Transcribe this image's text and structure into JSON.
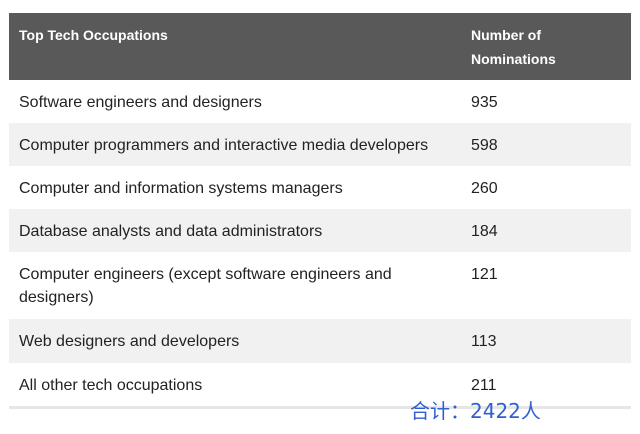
{
  "table": {
    "headers": {
      "occupation": "Top Tech Occupations",
      "nominations_line1": "Number of",
      "nominations_line2": "Nominations"
    },
    "rows": [
      {
        "occupation": "Software engineers and designers",
        "nominations": "935"
      },
      {
        "occupation": "Computer programmers and interactive media developers",
        "nominations": "598"
      },
      {
        "occupation": "Computer and information systems managers",
        "nominations": "260"
      },
      {
        "occupation": "Database analysts and data administrators",
        "nominations": "184"
      },
      {
        "occupation": "Computer engineers (except software engineers and designers)",
        "nominations": "121"
      },
      {
        "occupation": "Web designers and developers",
        "nominations": "113"
      },
      {
        "occupation": "All other tech occupations",
        "nominations": "211"
      }
    ]
  },
  "annotation": {
    "total": "合计：2422人"
  },
  "colors": {
    "header_bg": "#595959",
    "stripe_bg": "#f1f1f1",
    "annotation_text": "#2f5fd0"
  }
}
